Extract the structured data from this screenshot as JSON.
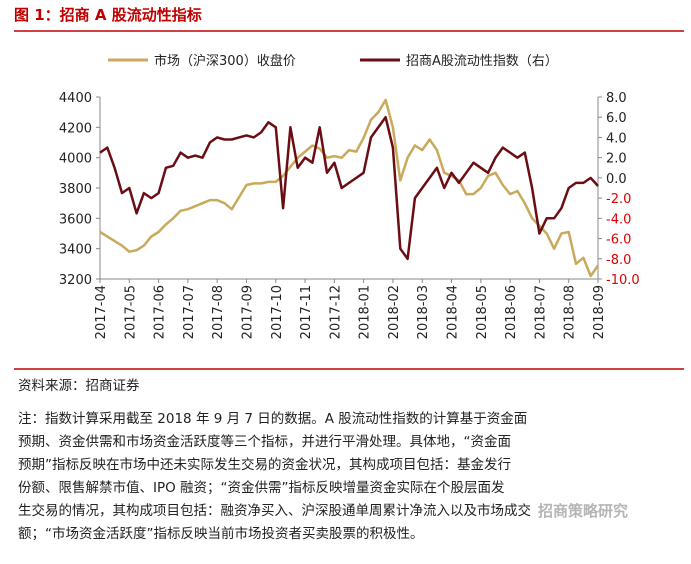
{
  "chart_data": {
    "type": "line",
    "title": "图 1：招商 A 股流动性指标",
    "categories": [
      "2017-04",
      null,
      null,
      null,
      "2017-05",
      null,
      null,
      null,
      "2017-06",
      null,
      null,
      null,
      "2017-07",
      null,
      null,
      null,
      "2017-08",
      null,
      null,
      null,
      "2017-09",
      null,
      null,
      null,
      "2017-10",
      null,
      null,
      null,
      "2017-11",
      null,
      null,
      null,
      "2017-12",
      null,
      null,
      null,
      "2018-01",
      null,
      null,
      null,
      "2018-02",
      null,
      null,
      null,
      "2018-03",
      null,
      null,
      null,
      "2018-04",
      null,
      null,
      null,
      "2018-05",
      null,
      null,
      null,
      "2018-06",
      null,
      null,
      null,
      "2018-07",
      null,
      null,
      null,
      "2018-08",
      null,
      null,
      null,
      "2018-09"
    ],
    "series": [
      {
        "name": "市场（沪深300）收盘价",
        "color": "#C9A95B",
        "values": [
          3510,
          3480,
          3450,
          3420,
          3380,
          3390,
          3420,
          3480,
          3510,
          3560,
          3600,
          3650,
          3660,
          3680,
          3700,
          3720,
          3720,
          3700,
          3660,
          3740,
          3820,
          3830,
          3830,
          3840,
          3840,
          3880,
          3940,
          4000,
          4040,
          4080,
          4060,
          4000,
          4010,
          4000,
          4050,
          4040,
          4130,
          4250,
          4300,
          4380,
          4200,
          3850,
          4000,
          4080,
          4050,
          4120,
          4050,
          3900,
          3880,
          3850,
          3760,
          3760,
          3800,
          3880,
          3900,
          3820,
          3760,
          3780,
          3700,
          3600,
          3550,
          3500,
          3400,
          3500,
          3510,
          3300,
          3340,
          3220,
          3290
        ]
      },
      {
        "name": "招商A股流动性指数（右）",
        "color": "#6B0E14",
        "axis": "y2",
        "values": [
          2.5,
          3.0,
          1.0,
          -1.5,
          -1.0,
          -3.5,
          -1.5,
          -2.0,
          -1.5,
          1.0,
          1.2,
          2.5,
          2.0,
          2.2,
          2.0,
          3.5,
          4.0,
          3.8,
          3.8,
          4.0,
          4.2,
          4.0,
          4.5,
          5.5,
          5.0,
          -3.0,
          5.0,
          1.0,
          2.0,
          1.5,
          5.0,
          0.5,
          1.5,
          -1.0,
          -0.5,
          0.0,
          0.5,
          4.0,
          5.0,
          6.0,
          3.0,
          -7.0,
          -8.0,
          -2.0,
          -1.0,
          0.0,
          1.0,
          -1.0,
          0.5,
          -0.5,
          0.5,
          1.5,
          1.0,
          0.5,
          2.0,
          3.0,
          2.5,
          2.0,
          2.5,
          -1.0,
          -5.5,
          -4.0,
          -4.0,
          -3.0,
          -1.0,
          -0.5,
          -0.5,
          0.0,
          -0.8
        ]
      }
    ],
    "ylim": [
      3200,
      4400
    ],
    "yticks": [
      3200,
      3400,
      3600,
      3800,
      4000,
      4200,
      4400
    ],
    "y2lim": [
      -10,
      8
    ],
    "y2ticks": [
      {
        "value": 8,
        "label": "8.0"
      },
      {
        "value": 6,
        "label": "6.0"
      },
      {
        "value": 4,
        "label": "4.0"
      },
      {
        "value": 2,
        "label": "2.0"
      },
      {
        "value": 0,
        "label": "0.0"
      },
      {
        "value": -2,
        "label": "-2.0"
      },
      {
        "value": -4,
        "label": "-4.0"
      },
      {
        "value": -6,
        "label": "-6.0"
      },
      {
        "value": -8,
        "label": "-8.0"
      },
      {
        "value": -10,
        "label": "-10.0"
      }
    ],
    "negative_tick_color": "#E00000",
    "source": "资料来源：招商证券",
    "note": [
      "注：指数计算采用截至 2018 年 9 月 7 日的数据。A 股流动性指数的计算基于资金面",
      "预期、资金供需和市场资金活跃度等三个指标，并进行平滑处理。具体地，“资金面",
      "预期”指标反映在市场中还未实际发生交易的资金状况，其构成项目包括：基金发行",
      "份额、限售解禁市值、IPO 融资；“资金供需”指标反映增量资金实际在个股层面发",
      "生交易的情况，其构成项目包括：融资净买入、沪深股通单周累计净流入以及市场成交",
      "额；“市场资金活跃度”指标反映当前市场投资者买卖股票的积极性。"
    ],
    "watermark": "招商策略研究"
  }
}
